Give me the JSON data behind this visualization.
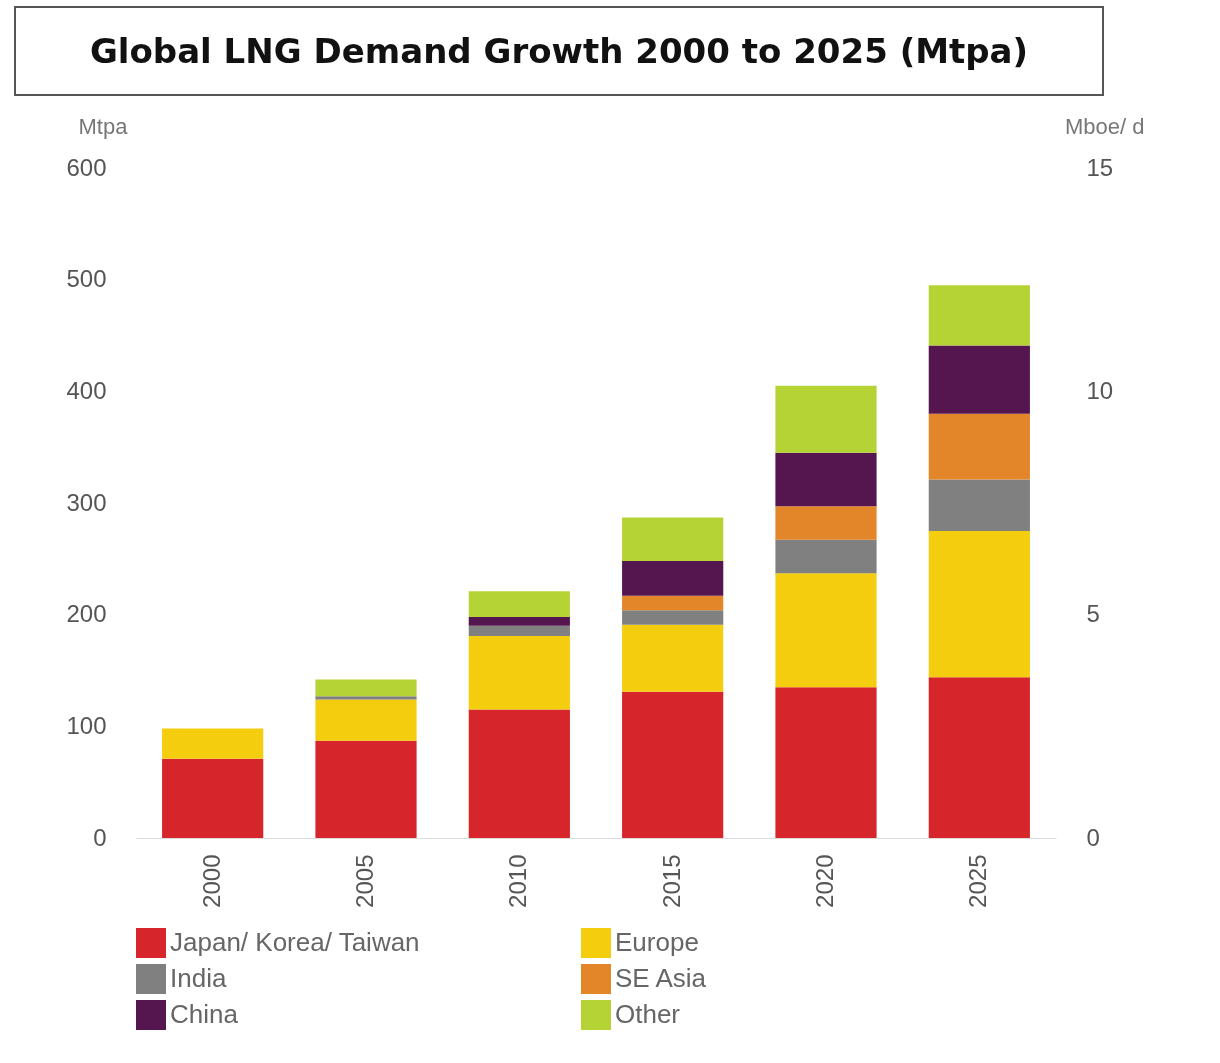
{
  "chart_data": {
    "type": "bar",
    "title": "Global LNG Demand Growth 2000 to 2025 (Mtpa)",
    "ylabel": "Mtpa",
    "y2label": "Mboe/ d",
    "stacked": true,
    "legend": "bottom",
    "grid": false,
    "categories": [
      "2000",
      "2005",
      "2010",
      "2015",
      "2020",
      "2025"
    ],
    "ylim": [
      0,
      600
    ],
    "yticks": [
      0,
      100,
      200,
      300,
      400,
      500,
      600
    ],
    "y2lim": [
      0,
      15
    ],
    "y2ticks": [
      0,
      5,
      10,
      15
    ],
    "series": [
      {
        "name": "Japan/ Korea/ Taiwan",
        "color": "#d7262b",
        "values": [
          71,
          87,
          115,
          131,
          135,
          144
        ]
      },
      {
        "name": "Europe",
        "color": "#f5cd0f",
        "values": [
          27,
          37,
          66,
          60,
          102,
          131
        ]
      },
      {
        "name": "India",
        "color": "#808080",
        "values": [
          0,
          3,
          9,
          13,
          30,
          46
        ]
      },
      {
        "name": "SE Asia",
        "color": "#e3862a",
        "values": [
          0,
          0,
          0,
          13,
          30,
          59
        ]
      },
      {
        "name": "China",
        "color": "#551650",
        "values": [
          0,
          0,
          8,
          31,
          48,
          61
        ]
      },
      {
        "name": "Other",
        "color": "#b5d334",
        "values": [
          0,
          15,
          23,
          39,
          60,
          54
        ]
      }
    ]
  }
}
